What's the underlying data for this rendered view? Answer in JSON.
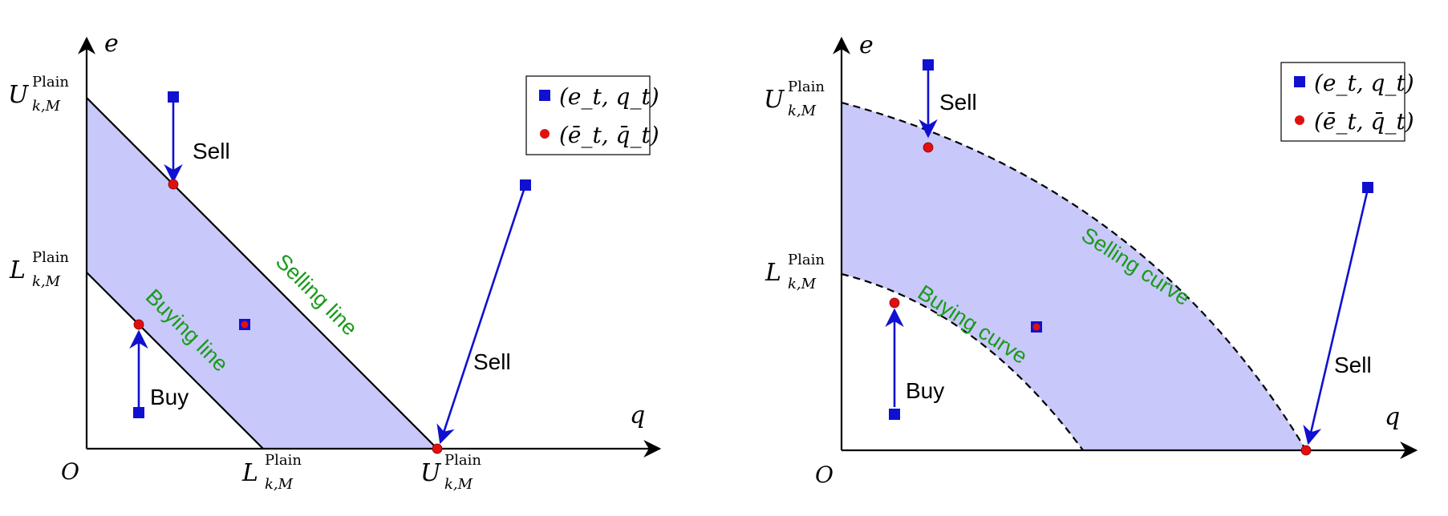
{
  "colors": {
    "region_fill": "#c8c8fa",
    "arrow": "#1010d0",
    "square": "#1010d0",
    "dot": "#e01010",
    "curve_label": "#1a9a1a",
    "axis": "#000000"
  },
  "left_panel": {
    "axis_y_label": "e",
    "axis_x_label": "q",
    "origin_label": "O",
    "tick_upper": {
      "main": "U",
      "sup": "Plain",
      "sub": "k,M"
    },
    "tick_lower": {
      "main": "L",
      "sup": "Plain",
      "sub": "k,M"
    },
    "boundary_upper_label": "Selling line",
    "boundary_lower_label": "Buying line",
    "arrow_labels": [
      "Sell",
      "Sell",
      "Buy"
    ],
    "legend": [
      {
        "marker": "square",
        "text": "(e_t, q_t)"
      },
      {
        "marker": "dot",
        "text": "(ē_t, q̄_t)"
      }
    ]
  },
  "right_panel": {
    "axis_y_label": "e",
    "axis_x_label": "q",
    "origin_label": "O",
    "tick_upper": {
      "main": "U",
      "sup": "Plain",
      "sub": "k,M"
    },
    "tick_lower": {
      "main": "L",
      "sup": "Plain",
      "sub": "k,M"
    },
    "boundary_upper_label": "Selling curve",
    "boundary_lower_label": "Buying curve",
    "arrow_labels": [
      "Sell",
      "Sell",
      "Buy"
    ],
    "legend": [
      {
        "marker": "square",
        "text": "(e_t, q_t)"
      },
      {
        "marker": "dot",
        "text": "(ē_t, q̄_t)"
      }
    ]
  }
}
